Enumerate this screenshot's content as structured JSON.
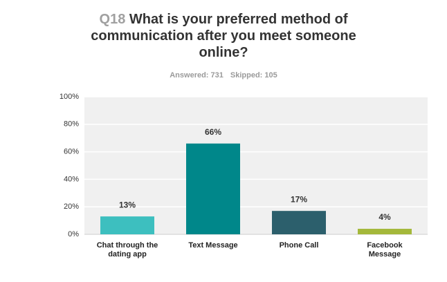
{
  "chart_data": {
    "type": "bar",
    "question": "Q18",
    "title": "What is your preferred method of communication after you meet someone online?",
    "subtitle": [
      "Answered: 731",
      "Skipped: 105"
    ],
    "categories": [
      "Chat through the dating app",
      "Text Message",
      "Phone Call",
      "Facebook Message"
    ],
    "values": [
      13,
      66,
      17,
      4
    ],
    "value_labels": [
      "13%",
      "66%",
      "17%",
      "4%"
    ],
    "colors": [
      "#3dbfbf",
      "#00878a",
      "#2c5f6c",
      "#a4b83a"
    ],
    "ylim": [
      0,
      100
    ],
    "yticks": [
      {
        "value": 0,
        "label": "0%"
      },
      {
        "value": 20,
        "label": "20%"
      },
      {
        "value": 40,
        "label": "40%"
      },
      {
        "value": 60,
        "label": "60%"
      },
      {
        "value": 80,
        "label": "80%"
      },
      {
        "value": 100,
        "label": "100%"
      }
    ],
    "grid": true
  }
}
